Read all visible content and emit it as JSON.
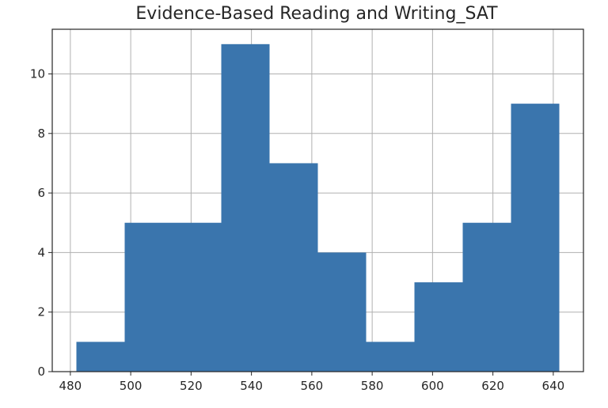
{
  "chart_data": {
    "type": "bar",
    "title": "Evidence-Based Reading and Writing_SAT",
    "xlabel": "",
    "ylabel": "",
    "bins": [
      {
        "start": 482,
        "end": 498,
        "count": 1
      },
      {
        "start": 498,
        "end": 514,
        "count": 5
      },
      {
        "start": 514,
        "end": 530,
        "count": 5
      },
      {
        "start": 530,
        "end": 546,
        "count": 11
      },
      {
        "start": 546,
        "end": 562,
        "count": 7
      },
      {
        "start": 562,
        "end": 578,
        "count": 4
      },
      {
        "start": 578,
        "end": 594,
        "count": 1
      },
      {
        "start": 594,
        "end": 610,
        "count": 3
      },
      {
        "start": 610,
        "end": 626,
        "count": 5
      },
      {
        "start": 626,
        "end": 642,
        "count": 9
      }
    ],
    "xlim": [
      474,
      650
    ],
    "ylim": [
      0,
      11.5
    ],
    "xticks": [
      480,
      500,
      520,
      540,
      560,
      580,
      600,
      620,
      640
    ],
    "yticks": [
      0,
      2,
      4,
      6,
      8,
      10
    ],
    "grid": true,
    "colors": {
      "bar": "#3a75ad",
      "grid": "#b0b0b0",
      "axis": "#262626"
    }
  }
}
